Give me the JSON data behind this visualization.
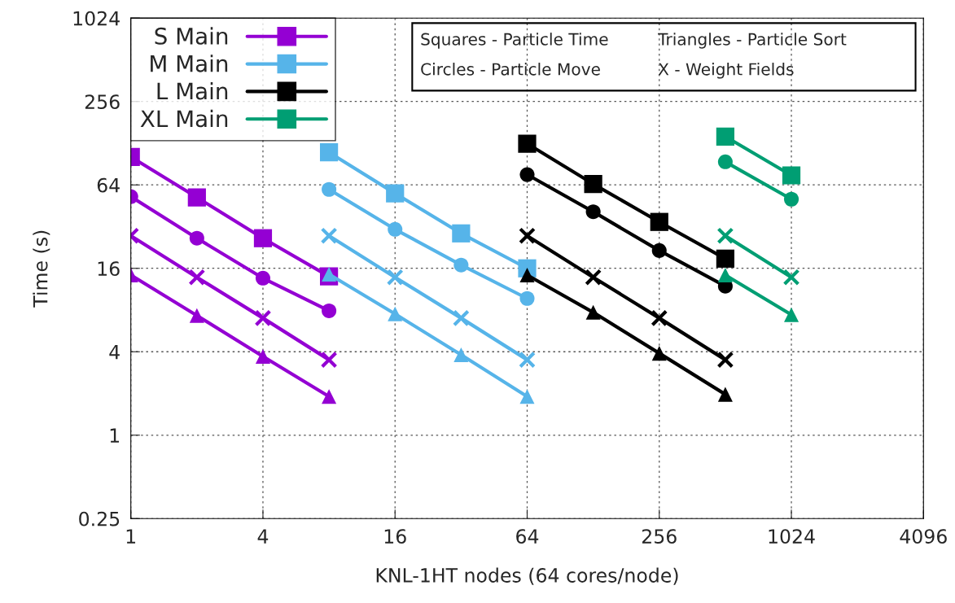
{
  "chart_data": {
    "type": "line",
    "xlabel": "KNL-1HT nodes (64 cores/node)",
    "ylabel": "Time (s)",
    "log": "xy",
    "grid": true,
    "legend": "top left",
    "xlim": [
      1,
      4096
    ],
    "xticks": [
      1,
      4,
      16,
      64,
      256,
      1024,
      4096
    ],
    "ylim": [
      0.25,
      1024
    ],
    "yticks": [
      0.25,
      1,
      4,
      16,
      64,
      256,
      1024
    ],
    "annotations": [
      "Squares - Particle Time",
      "Triangles - Particle Sort",
      "Circles - Particle Move",
      "X - Weight Fields"
    ],
    "series": [
      {
        "name": "S Main",
        "color": "#9400d3",
        "marker": "square",
        "x": [
          1,
          2,
          4,
          8
        ],
        "values": [
          102,
          52,
          26.4,
          14
        ]
      },
      {
        "color": "#9400d3",
        "marker": "circle",
        "x": [
          1,
          2,
          4,
          8
        ],
        "values": [
          52.7,
          26.4,
          13.6,
          7.9
        ]
      },
      {
        "color": "#9400d3",
        "marker": "cross",
        "x": [
          1,
          2,
          4,
          8
        ],
        "values": [
          27.5,
          13.8,
          7,
          3.5
        ]
      },
      {
        "color": "#9400d3",
        "marker": "triangle",
        "x": [
          1,
          2,
          4,
          8
        ],
        "values": [
          14.3,
          7.3,
          3.7,
          1.9
        ]
      },
      {
        "name": "M Main",
        "color": "#56b4e9",
        "marker": "square",
        "x": [
          8,
          16,
          32,
          64
        ],
        "values": [
          110,
          55.6,
          28.6,
          16
        ]
      },
      {
        "color": "#56b4e9",
        "marker": "circle",
        "x": [
          8,
          16,
          32,
          64
        ],
        "values": [
          59.4,
          30.6,
          16.9,
          9.7
        ]
      },
      {
        "color": "#56b4e9",
        "marker": "cross",
        "x": [
          8,
          16,
          32,
          64
        ],
        "values": [
          27.5,
          13.8,
          7,
          3.5
        ]
      },
      {
        "color": "#56b4e9",
        "marker": "triangle",
        "x": [
          8,
          16,
          32,
          64
        ],
        "values": [
          14.5,
          7.5,
          3.8,
          1.9
        ]
      },
      {
        "name": "L Main",
        "color": "#000000",
        "marker": "square",
        "x": [
          64,
          128,
          256,
          512
        ],
        "values": [
          127,
          65,
          34.6,
          18.8
        ]
      },
      {
        "color": "#000000",
        "marker": "circle",
        "x": [
          64,
          128,
          256,
          512
        ],
        "values": [
          76,
          41,
          21.5,
          11.9
        ]
      },
      {
        "color": "#000000",
        "marker": "cross",
        "x": [
          64,
          128,
          256,
          512
        ],
        "values": [
          27.5,
          13.8,
          7,
          3.5
        ]
      },
      {
        "color": "#000000",
        "marker": "triangle",
        "x": [
          64,
          128,
          256,
          512
        ],
        "values": [
          14.3,
          7.7,
          3.9,
          1.97
        ]
      },
      {
        "name": "XL Main",
        "color": "#009e73",
        "marker": "square",
        "x": [
          512,
          1024
        ],
        "values": [
          143,
          75
        ]
      },
      {
        "color": "#009e73",
        "marker": "circle",
        "x": [
          512,
          1024
        ],
        "values": [
          94,
          50.5
        ]
      },
      {
        "color": "#009e73",
        "marker": "cross",
        "x": [
          512,
          1024
        ],
        "values": [
          27.5,
          13.8
        ]
      },
      {
        "color": "#009e73",
        "marker": "triangle",
        "x": [
          512,
          1024
        ],
        "values": [
          14.3,
          7.4
        ]
      }
    ]
  }
}
